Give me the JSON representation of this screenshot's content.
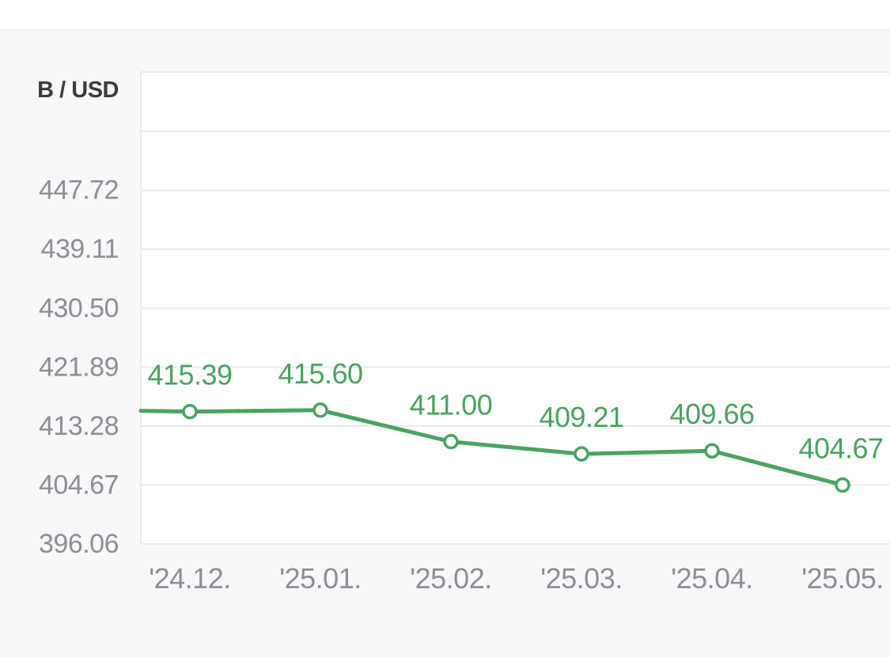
{
  "chart_data": {
    "type": "line",
    "unit_label": "B / USD",
    "categories": [
      "'24.12.",
      "'25.01.",
      "'25.02.",
      "'25.03.",
      "'25.04.",
      "'25.05."
    ],
    "series": [
      {
        "values": [
          415.39,
          415.6,
          411.0,
          409.21,
          409.66,
          404.67
        ],
        "labels": [
          "415.39",
          "415.60",
          "411.00",
          "409.21",
          "409.66",
          "404.67"
        ],
        "color": "#4aa35f"
      }
    ],
    "y_ticks": [
      "447.72",
      "439.11",
      "430.50",
      "421.89",
      "413.28",
      "404.67",
      "396.06"
    ],
    "ylim": [
      396.06,
      465.0
    ],
    "grid": true
  },
  "colors": {
    "line": "#4aa35f",
    "label": "#4aa35f",
    "tick_text": "#8e8e93",
    "grid": "#e8eaee",
    "plot_bg": "#ffffff",
    "page_bg": "#f7f8fa"
  }
}
